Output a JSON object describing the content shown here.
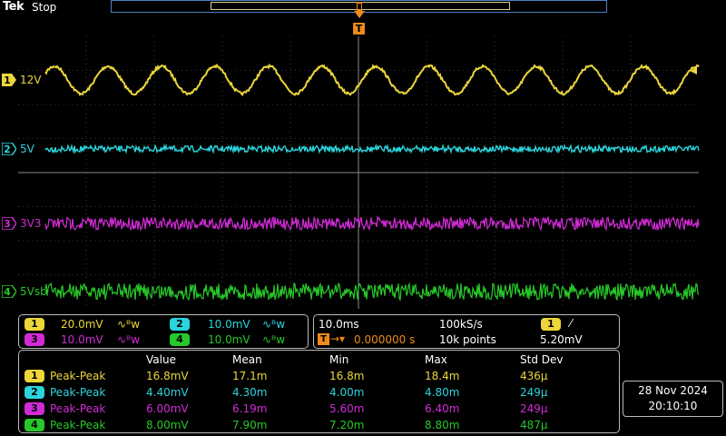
{
  "header": {
    "brand": "Tek",
    "run_state": "Stop"
  },
  "trigger": {
    "marker_label": "T"
  },
  "channels": [
    {
      "id": "1",
      "label": "12V",
      "color": "#ecd63a",
      "scale": "20.0mV",
      "bw": "∿ᴮw"
    },
    {
      "id": "2",
      "label": "5V",
      "color": "#2bd3dc",
      "scale": "10.0mV",
      "bw": "∿ᴮw"
    },
    {
      "id": "3",
      "label": "3V3",
      "color": "#d12bd6",
      "scale": "10.0mV",
      "bw": "∿ᴮw"
    },
    {
      "id": "4",
      "label": "5Vsb",
      "color": "#27c829",
      "scale": "10.0mV",
      "bw": "∿ᴮw"
    }
  ],
  "timebase": {
    "time_div": "10.0ms",
    "sample_rate": "100kS/s",
    "trigger_source": "1",
    "trigger_slope": "⁄",
    "trigger_position": "0.000000 s",
    "record_length": "10k points",
    "trigger_level": "5.20mV"
  },
  "measurements": {
    "headers": [
      "Value",
      "Mean",
      "Min",
      "Max",
      "Std Dev"
    ],
    "rows": [
      {
        "ch": "1",
        "name": "Peak-Peak",
        "value": "16.8mV",
        "mean": "17.1m",
        "min": "16.8m",
        "max": "18.4m",
        "std": "436μ"
      },
      {
        "ch": "2",
        "name": "Peak-Peak",
        "value": "4.40mV",
        "mean": "4.30m",
        "min": "4.00m",
        "max": "4.80m",
        "std": "249μ"
      },
      {
        "ch": "3",
        "name": "Peak-Peak",
        "value": "6.00mV",
        "mean": "6.19m",
        "min": "5.60m",
        "max": "6.40m",
        "std": "249μ"
      },
      {
        "ch": "4",
        "name": "Peak-Peak",
        "value": "8.00mV",
        "mean": "7.90m",
        "min": "7.20m",
        "max": "8.80m",
        "std": "487μ"
      }
    ]
  },
  "clock": {
    "date": "28 Nov 2024",
    "time": "20:10:10"
  }
}
